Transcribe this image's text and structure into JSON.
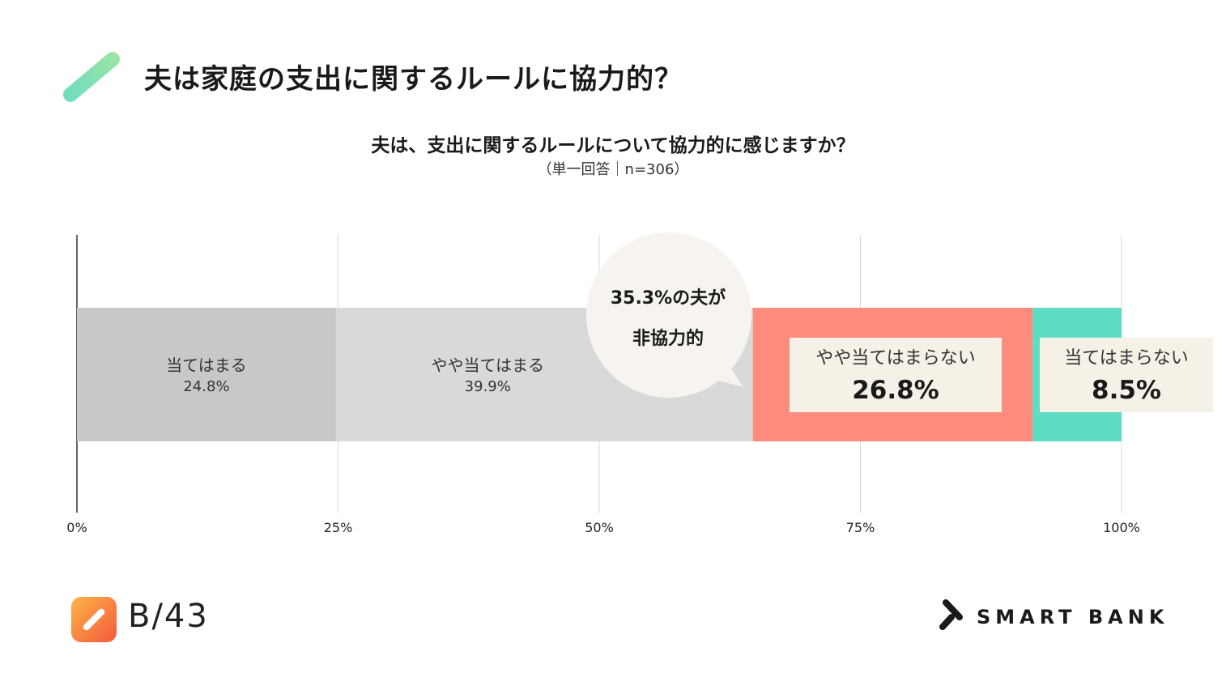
{
  "header": {
    "title": "夫は家庭の支出に関するルールに協力的？"
  },
  "chart_data": {
    "type": "bar",
    "title": "夫は、支出に関するルールについて協力的に感じますか？",
    "subtitle": "（単一回答｜n=306）",
    "stacked": true,
    "orientation": "horizontal",
    "xlim": [
      0,
      100
    ],
    "x_ticks": [
      "0%",
      "25%",
      "50%",
      "75%",
      "100%"
    ],
    "grid": true,
    "series": [
      {
        "name": "当てはまる",
        "value": 24.8,
        "label": "24.8%",
        "color": "#c8c8c8"
      },
      {
        "name": "やや当てはまる",
        "value": 39.9,
        "label": "39.9%",
        "color": "#d9d9d9"
      },
      {
        "name": "やや当てはまらない",
        "value": 26.8,
        "label": "26.8%",
        "color": "#fd8b7e"
      },
      {
        "name": "当てはまらない",
        "value": 8.5,
        "label": "8.5%",
        "color": "#5fdcc4"
      }
    ],
    "annotation": {
      "line1": "35.3%の夫が",
      "line2": "非協力的"
    }
  },
  "footer": {
    "brand": "B/43",
    "company": "SMART BANK"
  }
}
